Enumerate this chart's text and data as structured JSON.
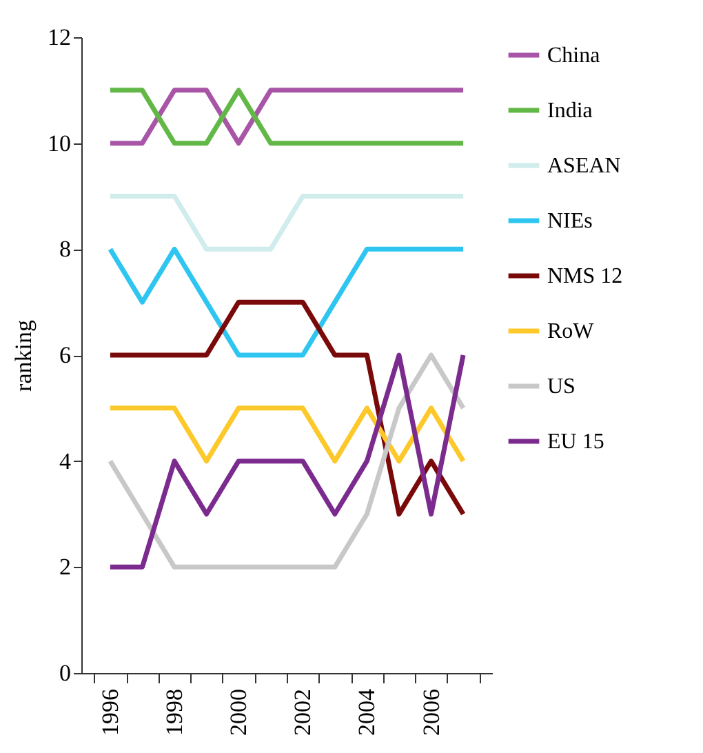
{
  "chart_data": {
    "type": "line",
    "ylabel": "ranking",
    "categories": [
      "1996",
      null,
      "1998",
      null,
      "2000",
      null,
      "2002",
      null,
      "2004",
      null,
      "2006",
      null
    ],
    "ylim": [
      0,
      12
    ],
    "yticks": [
      0,
      2,
      4,
      6,
      8,
      10,
      12
    ],
    "grid": false,
    "legend": "right",
    "marker": "none",
    "series": [
      {
        "name": "China",
        "color": "#a855a8",
        "values": [
          10,
          10,
          11,
          11,
          10,
          11,
          11,
          11,
          11,
          11,
          11,
          11
        ]
      },
      {
        "name": "India",
        "color": "#62b847",
        "values": [
          11,
          11,
          10,
          10,
          11,
          10,
          10,
          10,
          10,
          10,
          10,
          10
        ]
      },
      {
        "name": "ASEAN",
        "color": "#d0ecec",
        "values": [
          9,
          9,
          9,
          8,
          8,
          8,
          9,
          9,
          9,
          9,
          9,
          9
        ]
      },
      {
        "name": "NIEs",
        "color": "#2ec6f0",
        "values": [
          8,
          7,
          8,
          7,
          6,
          6,
          6,
          7,
          8,
          8,
          8,
          8
        ]
      },
      {
        "name": "NMS 12",
        "color": "#7a0a0a",
        "values": [
          6,
          6,
          6,
          6,
          7,
          7,
          7,
          6,
          6,
          3,
          4,
          3
        ]
      },
      {
        "name": "RoW",
        "color": "#fdc82a",
        "values": [
          5,
          5,
          5,
          4,
          5,
          5,
          5,
          4,
          5,
          4,
          5,
          4
        ]
      },
      {
        "name": "US",
        "color": "#c8c8c8",
        "values": [
          4,
          3,
          2,
          2,
          2,
          2,
          2,
          2,
          3,
          5,
          6,
          5
        ]
      },
      {
        "name": "EU 15",
        "color": "#7b2a8e",
        "values": [
          2,
          2,
          4,
          3,
          4,
          4,
          4,
          3,
          4,
          6,
          3,
          6
        ]
      }
    ]
  }
}
